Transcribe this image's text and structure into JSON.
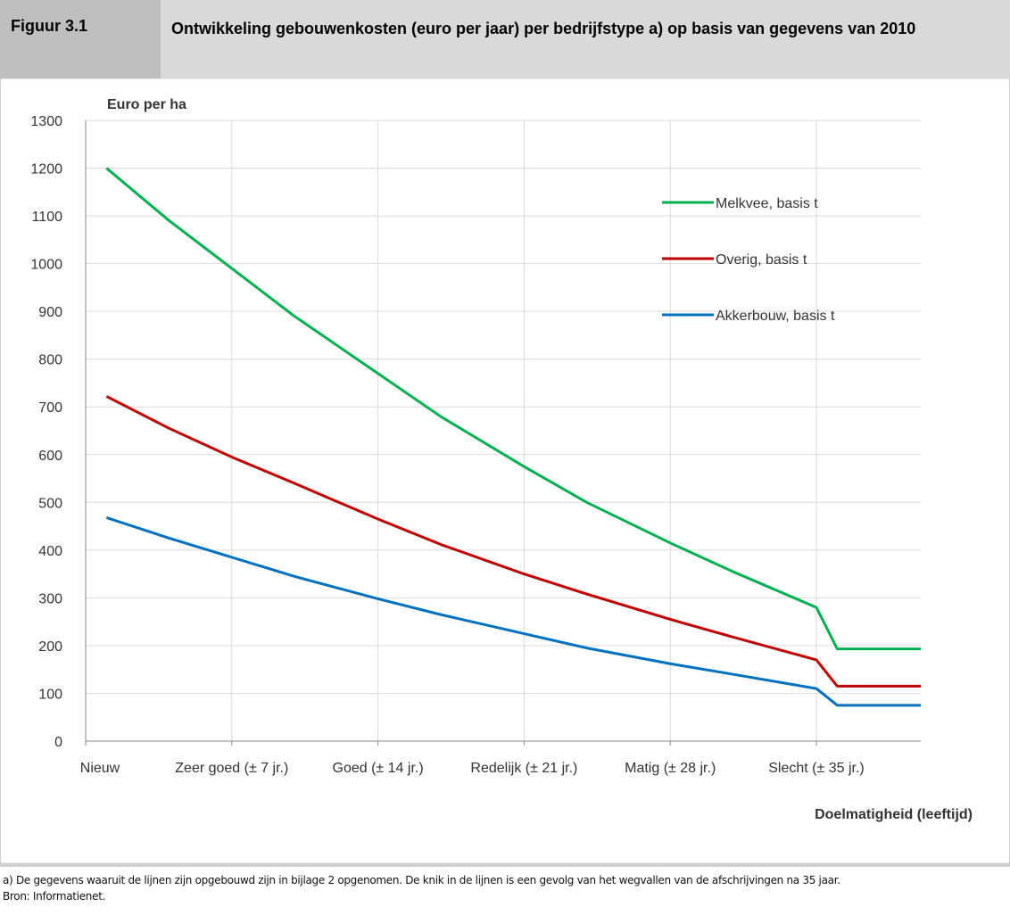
{
  "header": {
    "label": "Figuur 3.1",
    "title": "Ontwikkeling gebouwenkosten (euro per jaar) per bedrijfstype a) op basis van gegevens van 2010"
  },
  "chart_data": {
    "type": "line",
    "ylabel": "Euro per ha",
    "xlabel": "Doelmatigheid (leeftijd)",
    "x": [
      1,
      4,
      7,
      10,
      14,
      17,
      21,
      24,
      28,
      31,
      35,
      36,
      40
    ],
    "series": [
      {
        "name": "Melkvee, basis t",
        "color": "#00b050",
        "values": [
          1200,
          1090,
          990,
          890,
          770,
          680,
          575,
          500,
          415,
          355,
          280,
          193,
          193
        ]
      },
      {
        "name": "Overig, basis t",
        "color": "#c00000",
        "values": [
          722,
          655,
          595,
          540,
          465,
          412,
          350,
          308,
          255,
          218,
          170,
          115,
          115
        ]
      },
      {
        "name": "Akkerbouw, basis t",
        "color": "#0070c0",
        "values": [
          468,
          425,
          385,
          345,
          298,
          265,
          225,
          195,
          162,
          140,
          110,
          75,
          75
        ]
      }
    ],
    "xlim": [
      0,
      40
    ],
    "xticks": [
      {
        "value": 0,
        "label": "Nieuw"
      },
      {
        "value": 7,
        "label": "Zeer goed (± 7 jr.)"
      },
      {
        "value": 14,
        "label": "Goed (± 14 jr.)"
      },
      {
        "value": 21,
        "label": "Redelijk (± 21 jr.)"
      },
      {
        "value": 28,
        "label": "Matig (± 28 jr.)"
      },
      {
        "value": 35,
        "label": "Slecht (± 35 jr.)"
      }
    ],
    "ylim": [
      0,
      1300
    ],
    "yticks": [
      0,
      100,
      200,
      300,
      400,
      500,
      600,
      700,
      800,
      900,
      1000,
      1100,
      1200,
      1300
    ],
    "grid": true,
    "legend": "upper right"
  },
  "footnote": "a) De gegevens waaruit de lijnen zijn opgebouwd zijn in bijlage 2 opgenomen. De knik in de lijnen is een gevolg van het wegvallen van de afschrijvingen na 35 jaar.",
  "source": "Bron: Informatienet."
}
